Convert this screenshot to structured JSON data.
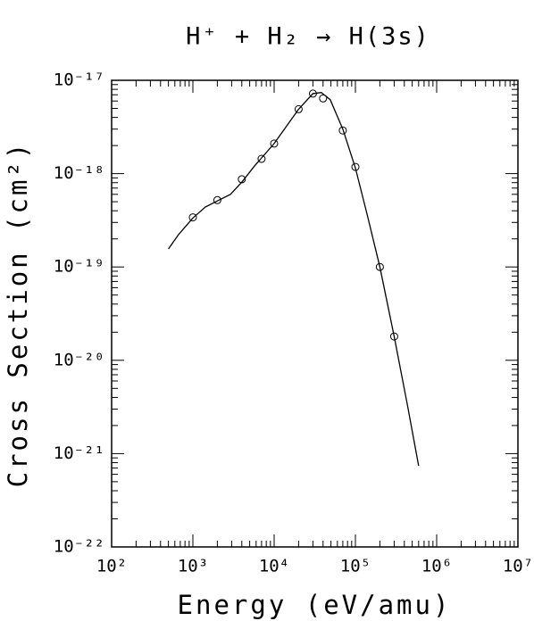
{
  "chart_data": {
    "type": "scatter",
    "title": "H⁺ + H₂ → H(3s)",
    "x_label": "Energy (eV/amu)",
    "y_label": "Cross Section (cm²)",
    "xscale": "log",
    "yscale": "log",
    "xlim": [
      100,
      10000000
    ],
    "ylim": [
      1e-22,
      1e-17
    ],
    "xticks": [
      {
        "value": 100,
        "label": "10²"
      },
      {
        "value": 1000,
        "label": "10³"
      },
      {
        "value": 10000,
        "label": "10⁴"
      },
      {
        "value": 100000,
        "label": "10⁵"
      },
      {
        "value": 1000000,
        "label": "10⁶"
      },
      {
        "value": 10000000,
        "label": "10⁷"
      }
    ],
    "yticks": [
      {
        "value": 1e-22,
        "label": "10⁻²²"
      },
      {
        "value": 1e-21,
        "label": "10⁻²¹"
      },
      {
        "value": 1e-20,
        "label": "10⁻²⁰"
      },
      {
        "value": 1e-19,
        "label": "10⁻¹⁹"
      },
      {
        "value": 1e-18,
        "label": "10⁻¹⁸"
      },
      {
        "value": 1e-17,
        "label": "10⁻¹⁷"
      }
    ],
    "series": [
      {
        "style": "markers",
        "color": "#000000",
        "x": [
          1000,
          2000,
          4000,
          7000,
          10000,
          20000,
          30000,
          40000,
          70000,
          100000,
          200000,
          300000
        ],
        "values": [
          3.4e-19,
          5.2e-19,
          8.7e-19,
          1.44e-18,
          2.1e-18,
          4.9e-18,
          7.2e-18,
          6.4e-18,
          2.9e-18,
          1.18e-18,
          1e-19,
          1.8e-20
        ]
      },
      {
        "style": "line",
        "color": "#000000",
        "x": [
          500,
          660,
          1000,
          1430,
          2000,
          2900,
          4000,
          5700,
          10000,
          20000,
          30000,
          38000,
          49000,
          70000,
          100000,
          140000,
          200000,
          300000,
          440000,
          600000
        ],
        "values": [
          1.56e-19,
          2.2e-19,
          3.35e-19,
          4.4e-19,
          5.1e-19,
          6e-19,
          8.1e-19,
          1.2e-18,
          2.1e-18,
          4.9e-18,
          7.2e-18,
          7.4e-18,
          6.2e-18,
          3e-18,
          1.15e-18,
          3.6e-19,
          1e-19,
          1.8e-20,
          3.2e-21,
          7.4e-22
        ]
      }
    ]
  }
}
